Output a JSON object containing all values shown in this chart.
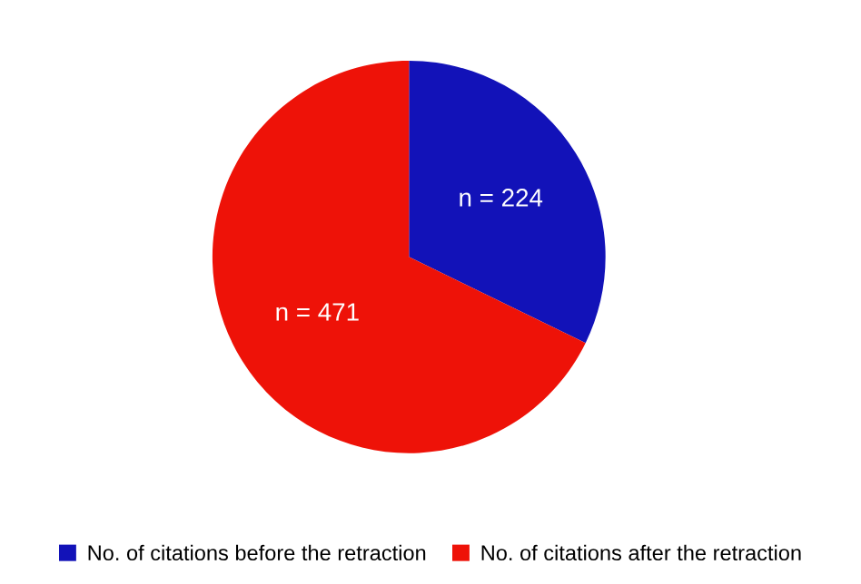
{
  "chart_data": {
    "type": "pie",
    "categories": [
      "No. of citations before the retraction",
      "No. of citations after the retraction"
    ],
    "values": [
      224,
      471
    ],
    "colors": [
      "#1212b8",
      "#ee1208"
    ],
    "value_labels": [
      "n = 224",
      "n = 471"
    ],
    "legend": "bottom"
  }
}
